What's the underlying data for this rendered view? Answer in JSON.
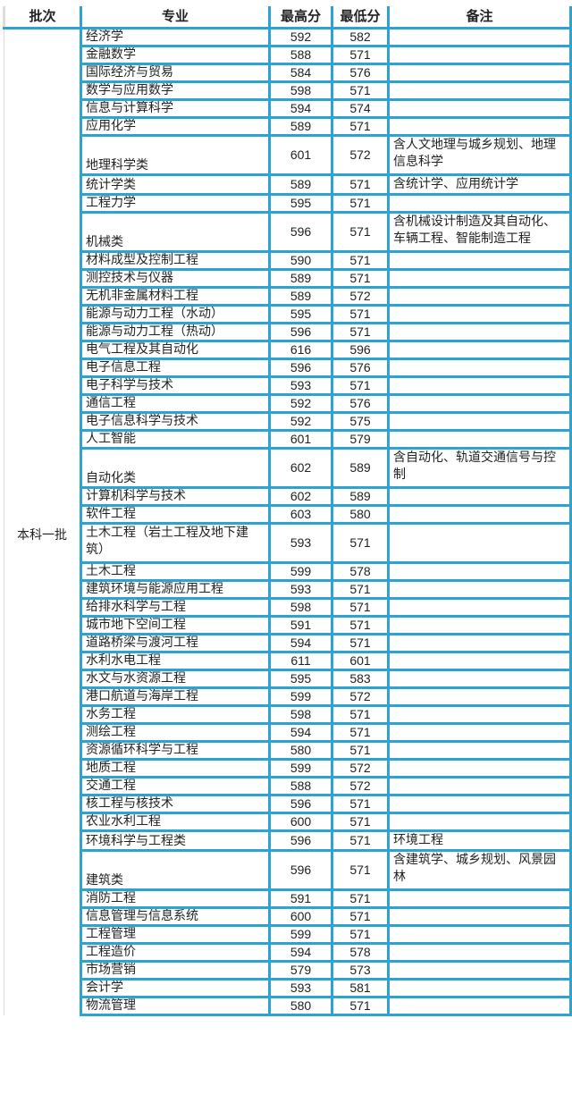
{
  "headers": {
    "batch": "批次",
    "major": "专业",
    "max": "最高分",
    "min": "最低分",
    "note": "备注"
  },
  "batch": "本科一批",
  "rows": [
    {
      "major": "经济学",
      "max": "592",
      "min": "582",
      "note": ""
    },
    {
      "major": "金融数学",
      "max": "588",
      "min": "571",
      "note": ""
    },
    {
      "major": "国际经济与贸易",
      "max": "584",
      "min": "576",
      "note": ""
    },
    {
      "major": "数学与应用数学",
      "max": "598",
      "min": "571",
      "note": ""
    },
    {
      "major": "信息与计算科学",
      "max": "594",
      "min": "574",
      "note": ""
    },
    {
      "major": "应用化学",
      "max": "589",
      "min": "571",
      "note": ""
    },
    {
      "major": "地理科学类",
      "max": "601",
      "min": "572",
      "note": "含人文地理与城乡规划、地理信息科学",
      "tall": true
    },
    {
      "major": "统计学类",
      "max": "589",
      "min": "571",
      "note": "含统计学、应用统计学"
    },
    {
      "major": "工程力学",
      "max": "595",
      "min": "571",
      "note": ""
    },
    {
      "major": "机械类",
      "max": "596",
      "min": "571",
      "note": "含机械设计制造及其自动化、车辆工程、智能制造工程",
      "tall": true
    },
    {
      "major": "材料成型及控制工程",
      "max": "590",
      "min": "571",
      "note": ""
    },
    {
      "major": "测控技术与仪器",
      "max": "589",
      "min": "571",
      "note": ""
    },
    {
      "major": "无机非金属材料工程",
      "max": "589",
      "min": "572",
      "note": ""
    },
    {
      "major": "能源与动力工程（水动）",
      "max": "595",
      "min": "571",
      "note": ""
    },
    {
      "major": "能源与动力工程（热动）",
      "max": "596",
      "min": "571",
      "note": ""
    },
    {
      "major": "电气工程及其自动化",
      "max": "616",
      "min": "596",
      "note": ""
    },
    {
      "major": "电子信息工程",
      "max": "596",
      "min": "576",
      "note": ""
    },
    {
      "major": "电子科学与技术",
      "max": "593",
      "min": "571",
      "note": ""
    },
    {
      "major": "通信工程",
      "max": "592",
      "min": "576",
      "note": ""
    },
    {
      "major": "电子信息科学与技术",
      "max": "592",
      "min": "575",
      "note": ""
    },
    {
      "major": "人工智能",
      "max": "601",
      "min": "579",
      "note": ""
    },
    {
      "major": "自动化类",
      "max": "602",
      "min": "589",
      "note": "含自动化、轨道交通信号与控制",
      "tall": true
    },
    {
      "major": "计算机科学与技术",
      "max": "602",
      "min": "589",
      "note": ""
    },
    {
      "major": "软件工程",
      "max": "603",
      "min": "580",
      "note": ""
    },
    {
      "major": "土木工程（岩土工程及地下建筑）",
      "max": "593",
      "min": "571",
      "note": "",
      "tall": true
    },
    {
      "major": "土木工程",
      "max": "599",
      "min": "578",
      "note": ""
    },
    {
      "major": "建筑环境与能源应用工程",
      "max": "593",
      "min": "571",
      "note": ""
    },
    {
      "major": "给排水科学与工程",
      "max": "598",
      "min": "571",
      "note": ""
    },
    {
      "major": "城市地下空间工程",
      "max": "591",
      "min": "571",
      "note": ""
    },
    {
      "major": "道路桥梁与渡河工程",
      "max": "594",
      "min": "571",
      "note": ""
    },
    {
      "major": "水利水电工程",
      "max": "611",
      "min": "601",
      "note": ""
    },
    {
      "major": "水文与水资源工程",
      "max": "595",
      "min": "583",
      "note": ""
    },
    {
      "major": "港口航道与海岸工程",
      "max": "599",
      "min": "572",
      "note": ""
    },
    {
      "major": "水务工程",
      "max": "598",
      "min": "571",
      "note": ""
    },
    {
      "major": "测绘工程",
      "max": "594",
      "min": "571",
      "note": ""
    },
    {
      "major": "资源循环科学与工程",
      "max": "580",
      "min": "571",
      "note": ""
    },
    {
      "major": "地质工程",
      "max": "599",
      "min": "572",
      "note": ""
    },
    {
      "major": "交通工程",
      "max": "588",
      "min": "572",
      "note": ""
    },
    {
      "major": "核工程与核技术",
      "max": "596",
      "min": "571",
      "note": ""
    },
    {
      "major": "农业水利工程",
      "max": "600",
      "min": "571",
      "note": ""
    },
    {
      "major": "环境科学与工程类",
      "max": "596",
      "min": "571",
      "note": "环境工程"
    },
    {
      "major": "建筑类",
      "max": "596",
      "min": "571",
      "note": "含建筑学、城乡规划、风景园林",
      "tall": true
    },
    {
      "major": "消防工程",
      "max": "591",
      "min": "571",
      "note": ""
    },
    {
      "major": "信息管理与信息系统",
      "max": "600",
      "min": "571",
      "note": ""
    },
    {
      "major": "工程管理",
      "max": "599",
      "min": "571",
      "note": ""
    },
    {
      "major": "工程造价",
      "max": "594",
      "min": "578",
      "note": ""
    },
    {
      "major": "市场营销",
      "max": "579",
      "min": "573",
      "note": ""
    },
    {
      "major": "会计学",
      "max": "593",
      "min": "581",
      "note": ""
    },
    {
      "major": "物流管理",
      "max": "580",
      "min": "571",
      "note": ""
    }
  ],
  "colors": {
    "border": "#2ea3d3"
  }
}
